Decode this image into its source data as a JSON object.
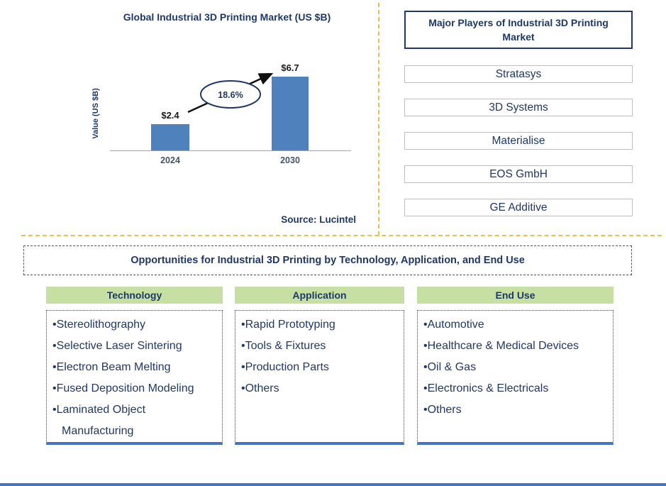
{
  "chart_data": {
    "type": "bar",
    "title": "Global Industrial 3D Printing Market (US $B)",
    "categories": [
      "2024",
      "2030"
    ],
    "values": [
      2.4,
      6.7
    ],
    "value_labels": [
      "$2.4",
      "$6.7"
    ],
    "xlabel": "",
    "ylabel": "Value (US $B)",
    "ylim": [
      0,
      8
    ],
    "grid": false,
    "legend": false,
    "bar_color": "#4F81BD",
    "annotations": [
      {
        "type": "growth-arrow",
        "text": "18.6%",
        "from": "2024",
        "to": "2030"
      }
    ],
    "source": "Source: Lucintel"
  },
  "players": {
    "title": "Major Players of Industrial 3D Printing Market",
    "items": [
      "Stratasys",
      "3D Systems",
      "Materialise",
      "EOS GmbH",
      "GE Additive"
    ]
  },
  "opportunities": {
    "title": "Opportunities for Industrial 3D Printing by Technology, Application, and End Use",
    "columns": [
      {
        "header": "Technology",
        "items": [
          "Stereolithography",
          "Selective Laser Sintering",
          "Electron Beam Melting",
          "Fused Deposition Modeling",
          "Laminated Object Manufacturing"
        ]
      },
      {
        "header": "Application",
        "items": [
          "Rapid Prototyping",
          "Tools & Fixtures",
          "Production Parts",
          "Others"
        ]
      },
      {
        "header": "End Use",
        "items": [
          "Automotive",
          "Healthcare & Medical Devices",
          "Oil & Gas",
          "Electronics & Electricals",
          "Others"
        ]
      }
    ]
  },
  "colors": {
    "navy": "#1F3864",
    "bar_blue": "#4F81BD",
    "header_green": "#C5E0A2",
    "divider_yellow": "#E8C14D",
    "accent_blue": "#4472C4",
    "box_gray": "#BFBFBF",
    "axis_gray": "#A6A6A6"
  }
}
